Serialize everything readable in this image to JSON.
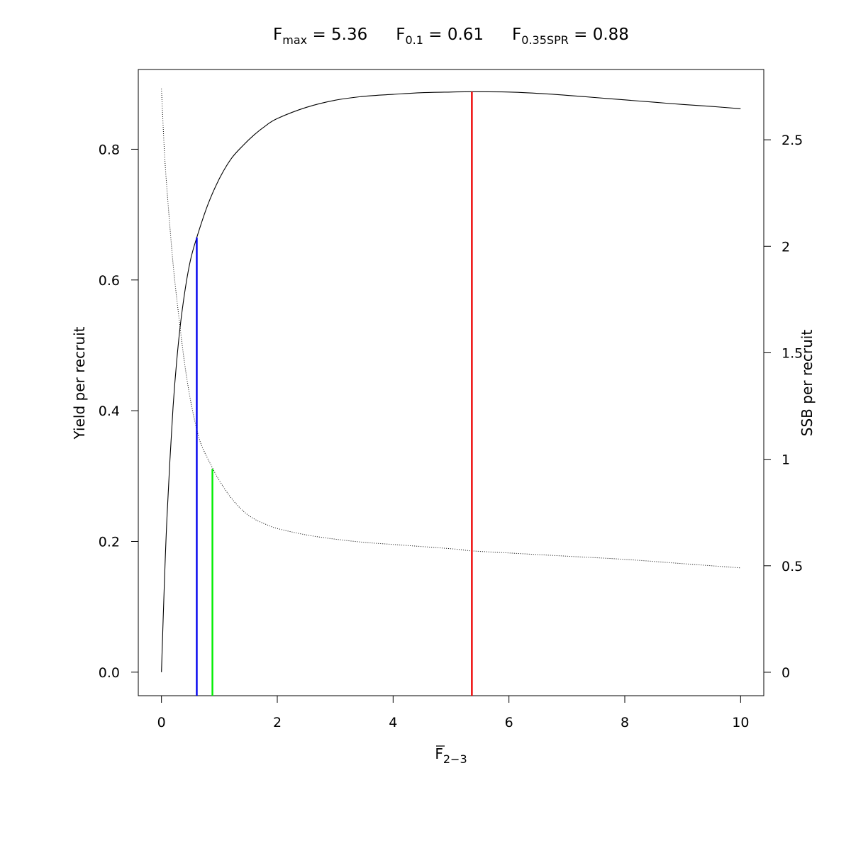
{
  "chart_data": {
    "type": "line",
    "title": {
      "fmax": {
        "sym": "F",
        "sub": "max",
        "val": " = 5.36"
      },
      "f01": {
        "sym": "F",
        "sub": "0.1",
        "val": " = 0.61"
      },
      "fspr": {
        "sym": "F",
        "sub": "0.35SPR",
        "val": " = 0.88"
      }
    },
    "xlabel": {
      "sym": "F",
      "sub": "2−3"
    },
    "ylabel_left": "Yield per recruit",
    "ylabel_right": "SSB per recruit",
    "xlim": [
      -0.4,
      10.4
    ],
    "ylim_left": [
      -0.036,
      0.922
    ],
    "ylim_right": [
      -0.11,
      2.83
    ],
    "x_ticks": [
      "0",
      "2",
      "4",
      "6",
      "8",
      "10"
    ],
    "y_left_ticks": [
      "0.0",
      "0.2",
      "0.4",
      "0.6",
      "0.8"
    ],
    "y_right_ticks": [
      "0",
      "0.5",
      "1",
      "1.5",
      "2",
      "2.5"
    ],
    "series": [
      {
        "axis": "left",
        "style": "solid",
        "color": "#000000",
        "x": [
          0,
          0.05,
          0.1,
          0.2,
          0.3,
          0.4,
          0.5,
          0.61,
          0.8,
          1.0,
          1.2,
          1.4,
          1.6,
          1.8,
          2.0,
          2.5,
          3.0,
          3.5,
          4.0,
          4.5,
          5.0,
          5.36,
          6.0,
          6.5,
          7.0,
          7.5,
          8.0,
          8.5,
          9.0,
          9.5,
          10.0
        ],
        "y": [
          0.0,
          0.135,
          0.245,
          0.405,
          0.51,
          0.58,
          0.63,
          0.665,
          0.715,
          0.755,
          0.785,
          0.805,
          0.822,
          0.836,
          0.847,
          0.864,
          0.875,
          0.881,
          0.884,
          0.8865,
          0.8875,
          0.888,
          0.8875,
          0.8855,
          0.8825,
          0.879,
          0.8755,
          0.872,
          0.8685,
          0.8655,
          0.862
        ]
      },
      {
        "axis": "right",
        "style": "dotted",
        "color": "#000000",
        "x": [
          0,
          0.05,
          0.1,
          0.2,
          0.3,
          0.4,
          0.5,
          0.61,
          0.7,
          0.88,
          1.0,
          1.2,
          1.4,
          1.6,
          1.8,
          2.0,
          2.5,
          3.0,
          3.5,
          4.0,
          5.0,
          5.36,
          6.0,
          7.0,
          8.0,
          9.0,
          10.0
        ],
        "y": [
          2.74,
          2.45,
          2.25,
          1.92,
          1.67,
          1.45,
          1.28,
          1.14,
          1.06,
          0.96,
          0.9,
          0.82,
          0.76,
          0.72,
          0.695,
          0.675,
          0.645,
          0.625,
          0.61,
          0.6,
          0.58,
          0.57,
          0.56,
          0.545,
          0.53,
          0.51,
          0.49
        ]
      }
    ],
    "reference_lines": [
      {
        "name": "F0.1",
        "x": 0.61,
        "y_top": 0.665,
        "color": "#0000ee"
      },
      {
        "name": "F0.35SPR",
        "x": 0.88,
        "y_top": 0.311,
        "color": "#00ee00"
      },
      {
        "name": "Fmax",
        "x": 5.36,
        "y_top": 0.888,
        "color": "#ee0000"
      }
    ],
    "grid": false,
    "legend": "none"
  }
}
